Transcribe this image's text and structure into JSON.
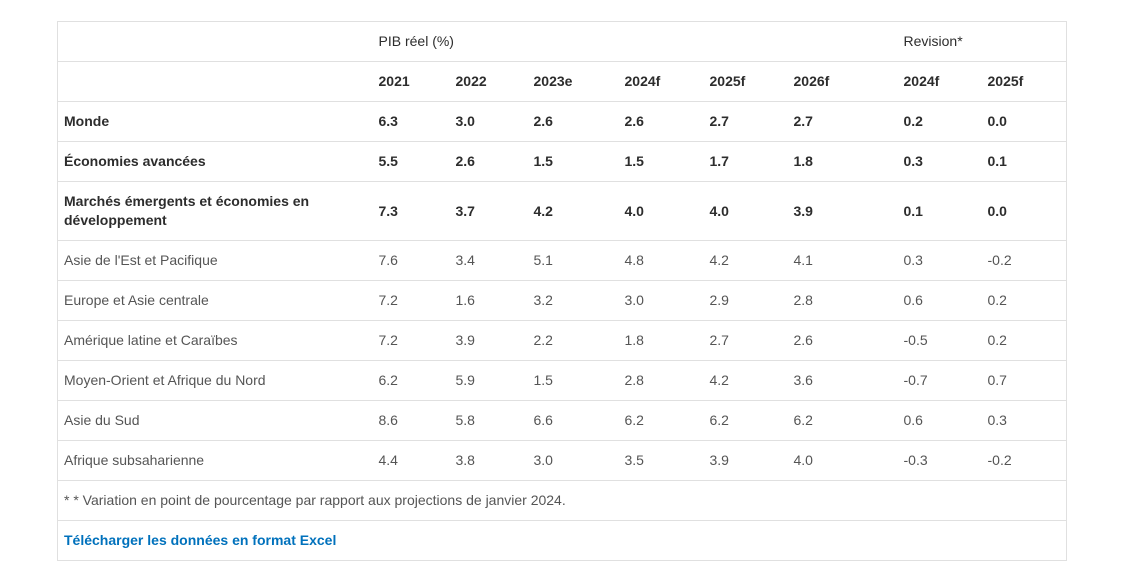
{
  "chart_data": {
    "type": "table",
    "column_groups": [
      {
        "label": "PIB réel (%)",
        "span": 6
      },
      {
        "label": "Revision*",
        "span": 2
      }
    ],
    "columns": [
      "2021",
      "2022",
      "2023e",
      "2024f",
      "2025f",
      "2026f",
      "2024f",
      "2025f"
    ],
    "rows": [
      {
        "label": "Monde",
        "bold": true,
        "indent": 0,
        "values": [
          "6.3",
          "3.0",
          "2.6",
          "2.6",
          "2.7",
          "2.7",
          "0.2",
          "0.0"
        ]
      },
      {
        "label": "Économies avancées",
        "bold": true,
        "indent": 0,
        "values": [
          "5.5",
          "2.6",
          "1.5",
          "1.5",
          "1.7",
          "1.8",
          "0.3",
          "0.1"
        ]
      },
      {
        "label": "Marchés émergents et économies en développement",
        "bold": true,
        "indent": 0,
        "values": [
          "7.3",
          "3.7",
          "4.2",
          "4.0",
          "4.0",
          "3.9",
          "0.1",
          "0.0"
        ]
      },
      {
        "label": "Asie de l'Est et Pacifique",
        "bold": false,
        "indent": 1,
        "values": [
          "7.6",
          "3.4",
          "5.1",
          "4.8",
          "4.2",
          "4.1",
          "0.3",
          "-0.2"
        ]
      },
      {
        "label": "Europe et Asie centrale",
        "bold": false,
        "indent": 1,
        "values": [
          "7.2",
          "1.6",
          "3.2",
          "3.0",
          "2.9",
          "2.8",
          "0.6",
          "0.2"
        ]
      },
      {
        "label": "Amérique latine et Caraïbes",
        "bold": false,
        "indent": 1,
        "values": [
          "7.2",
          "3.9",
          "2.2",
          "1.8",
          "2.7",
          "2.6",
          "-0.5",
          "0.2"
        ]
      },
      {
        "label": "Moyen-Orient et Afrique du Nord",
        "bold": false,
        "indent": 1,
        "values": [
          "6.2",
          "5.9",
          "1.5",
          "2.8",
          "4.2",
          "3.6",
          "-0.7",
          "0.7"
        ]
      },
      {
        "label": "Asie du Sud",
        "bold": false,
        "indent": 2,
        "values": [
          "8.6",
          "5.8",
          "6.6",
          "6.2",
          "6.2",
          "6.2",
          "0.6",
          "0.3"
        ]
      },
      {
        "label": "Afrique subsaharienne",
        "bold": false,
        "indent": 2,
        "values": [
          "4.4",
          "3.8",
          "3.0",
          "3.5",
          "3.9",
          "4.0",
          "-0.3",
          "-0.2"
        ]
      }
    ],
    "footnote": "* * Variation en point de pourcentage par rapport aux projections de janvier 2024.",
    "download_link_label": "Télécharger les données en format Excel"
  },
  "colors": {
    "link_blue": "#0071bc",
    "border_gray": "#e0e0e0",
    "text_dark": "#2d2d2d",
    "text_gray": "#555555"
  }
}
